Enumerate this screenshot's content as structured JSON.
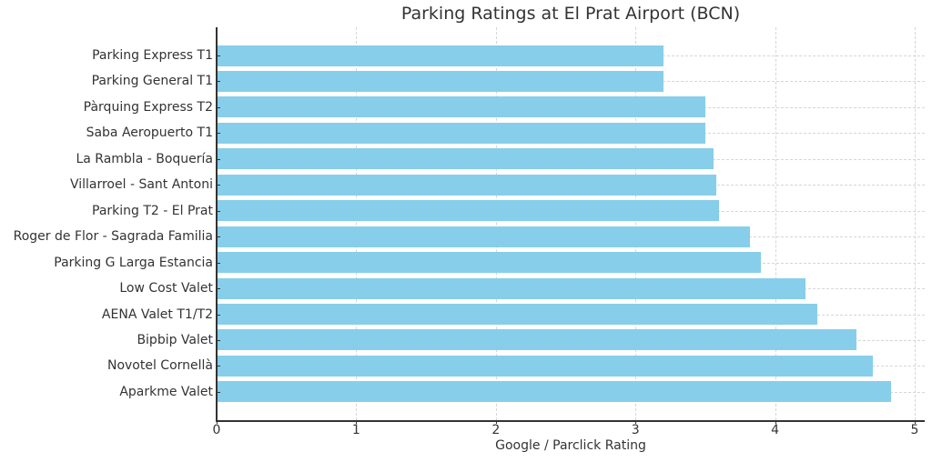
{
  "chart_data": {
    "type": "bar",
    "orientation": "horizontal",
    "title": "Parking Ratings at El Prat Airport (BCN)",
    "xlabel": "Google / Parclick Rating",
    "ylabel": "",
    "xlim": [
      0,
      5.08
    ],
    "xticks": [
      "0",
      "1",
      "2",
      "3",
      "4",
      "5"
    ],
    "grid": true,
    "bar_color": "#87ceeb",
    "categories": [
      "Parking Express T1",
      "Parking General T1",
      "Pàrquing Express T2",
      "Saba Aeropuerto T1",
      "La Rambla - Boquería",
      "Villarroel - Sant Antoni",
      "Parking T2 - El Prat",
      "Roger de Flor - Sagrada Familia",
      "Parking G Larga Estancia",
      "Low Cost Valet",
      "AENA Valet T1/T2",
      "Bipbip Valet",
      "Novotel Cornellà",
      "Aparkme Valet"
    ],
    "values": [
      3.2,
      3.2,
      3.5,
      3.5,
      3.56,
      3.58,
      3.6,
      3.82,
      3.9,
      4.22,
      4.3,
      4.58,
      4.7,
      4.83
    ]
  }
}
